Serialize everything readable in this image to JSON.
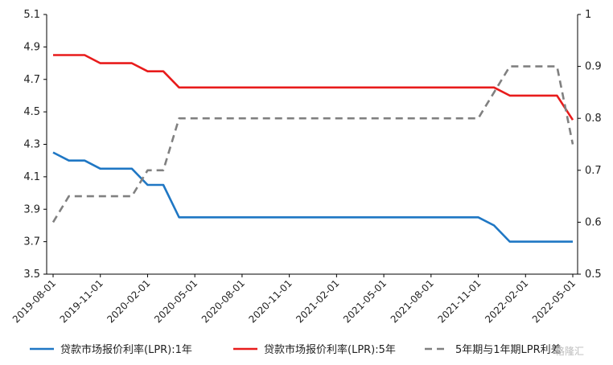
{
  "chart_data": {
    "type": "line",
    "x": [
      "2019-08-01",
      "2019-09-01",
      "2019-10-01",
      "2019-11-01",
      "2019-12-01",
      "2020-01-01",
      "2020-02-01",
      "2020-03-01",
      "2020-04-01",
      "2020-05-01",
      "2020-06-01",
      "2020-07-01",
      "2020-08-01",
      "2020-09-01",
      "2020-10-01",
      "2020-11-01",
      "2020-12-01",
      "2021-01-01",
      "2021-02-01",
      "2021-03-01",
      "2021-04-01",
      "2021-05-01",
      "2021-06-01",
      "2021-07-01",
      "2021-08-01",
      "2021-09-01",
      "2021-10-01",
      "2021-11-01",
      "2021-12-01",
      "2022-01-01",
      "2022-02-01",
      "2022-03-01",
      "2022-04-01",
      "2022-05-01"
    ],
    "x_ticks": [
      "2019-08-01",
      "2019-11-01",
      "2020-02-01",
      "2020-05-01",
      "2020-08-01",
      "2020-11-01",
      "2021-02-01",
      "2021-05-01",
      "2021-08-01",
      "2021-11-01",
      "2022-02-01",
      "2022-05-01"
    ],
    "y_left": {
      "min": 3.5,
      "max": 5.1,
      "ticks": [
        "3.5",
        "3.7",
        "3.9",
        "4.1",
        "4.3",
        "4.5",
        "4.7",
        "4.9",
        "5.1"
      ]
    },
    "y_right": {
      "min": 0.5,
      "max": 1.0,
      "ticks": [
        "0.5",
        "0.6",
        "0.7",
        "0.8",
        "0.9",
        "1"
      ]
    },
    "grid": false,
    "legend_position": "bottom",
    "series": [
      {
        "name": "贷款市场报价利率(LPR):1年",
        "axis": "left",
        "color": "#1f77c4",
        "dash": "solid",
        "values": [
          4.25,
          4.2,
          4.2,
          4.15,
          4.15,
          4.15,
          4.05,
          4.05,
          3.85,
          3.85,
          3.85,
          3.85,
          3.85,
          3.85,
          3.85,
          3.85,
          3.85,
          3.85,
          3.85,
          3.85,
          3.85,
          3.85,
          3.85,
          3.85,
          3.85,
          3.85,
          3.85,
          3.85,
          3.8,
          3.7,
          3.7,
          3.7,
          3.7,
          3.7
        ]
      },
      {
        "name": "贷款市场报价利率(LPR):5年",
        "axis": "left",
        "color": "#e81c1c",
        "dash": "solid",
        "values": [
          4.85,
          4.85,
          4.85,
          4.8,
          4.8,
          4.8,
          4.75,
          4.75,
          4.65,
          4.65,
          4.65,
          4.65,
          4.65,
          4.65,
          4.65,
          4.65,
          4.65,
          4.65,
          4.65,
          4.65,
          4.65,
          4.65,
          4.65,
          4.65,
          4.65,
          4.65,
          4.65,
          4.65,
          4.65,
          4.6,
          4.6,
          4.6,
          4.6,
          4.45
        ]
      },
      {
        "name": "5年期与1年期LPR利差",
        "axis": "right",
        "color": "#808080",
        "dash": "dashed",
        "values": [
          0.6,
          0.65,
          0.65,
          0.65,
          0.65,
          0.65,
          0.7,
          0.7,
          0.8,
          0.8,
          0.8,
          0.8,
          0.8,
          0.8,
          0.8,
          0.8,
          0.8,
          0.8,
          0.8,
          0.8,
          0.8,
          0.8,
          0.8,
          0.8,
          0.8,
          0.8,
          0.8,
          0.8,
          0.85,
          0.9,
          0.9,
          0.9,
          0.9,
          0.75
        ]
      }
    ]
  },
  "watermark": "格隆汇"
}
